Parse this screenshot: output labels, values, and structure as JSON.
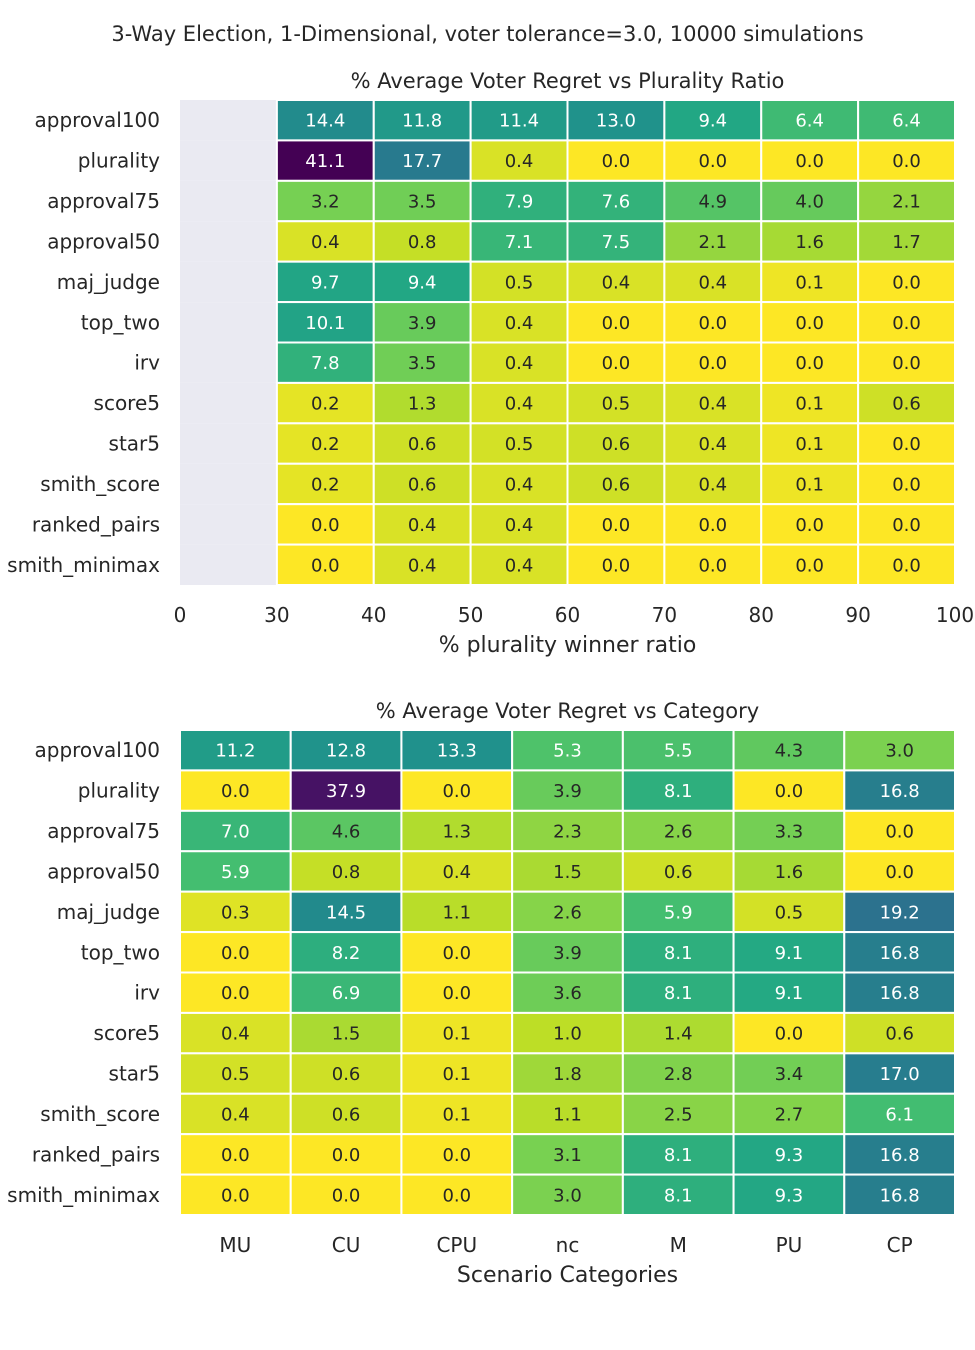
{
  "figure": {
    "suptitle": "3-Way Election, 1-Dimensional, voter tolerance=3.0, 10000 simulations"
  },
  "chart_data": [
    {
      "type": "heatmap",
      "title": "% Average Voter Regret vs Plurality Ratio",
      "xlabel": "% plurality winner ratio",
      "ylabel": "",
      "x_ticks": [
        "0",
        "30",
        "40",
        "50",
        "60",
        "70",
        "80",
        "90",
        "100"
      ],
      "x_bins": [
        "0-30",
        "30-40",
        "40-50",
        "50-60",
        "60-70",
        "70-80",
        "80-90",
        "90-100"
      ],
      "rows": [
        "approval100",
        "plurality",
        "approval75",
        "approval50",
        "maj_judge",
        "top_two",
        "irv",
        "score5",
        "star5",
        "smith_score",
        "ranked_pairs",
        "smith_minimax"
      ],
      "values": [
        [
          null,
          14.4,
          11.8,
          11.4,
          13.0,
          9.4,
          6.4,
          6.4
        ],
        [
          null,
          41.1,
          17.7,
          0.4,
          0.0,
          0.0,
          0.0,
          0.0
        ],
        [
          null,
          3.2,
          3.5,
          7.9,
          7.6,
          4.9,
          4.0,
          2.1
        ],
        [
          null,
          0.4,
          0.8,
          7.1,
          7.5,
          2.1,
          1.6,
          1.7
        ],
        [
          null,
          9.7,
          9.4,
          0.5,
          0.4,
          0.4,
          0.1,
          0.0
        ],
        [
          null,
          10.1,
          3.9,
          0.4,
          0.0,
          0.0,
          0.0,
          0.0
        ],
        [
          null,
          7.8,
          3.5,
          0.4,
          0.0,
          0.0,
          0.0,
          0.0
        ],
        [
          null,
          0.2,
          1.3,
          0.4,
          0.5,
          0.4,
          0.1,
          0.6
        ],
        [
          null,
          0.2,
          0.6,
          0.5,
          0.6,
          0.4,
          0.1,
          0.0
        ],
        [
          null,
          0.2,
          0.6,
          0.4,
          0.6,
          0.4,
          0.1,
          0.0
        ],
        [
          null,
          0.0,
          0.4,
          0.4,
          0.0,
          0.0,
          0.0,
          0.0
        ],
        [
          null,
          0.0,
          0.4,
          0.4,
          0.0,
          0.0,
          0.0,
          0.0
        ]
      ],
      "colormap": "viridis_r",
      "color_range": [
        0,
        41.1
      ],
      "missing_color": "#eaeaf2"
    },
    {
      "type": "heatmap",
      "title": "% Average Voter Regret vs Category",
      "xlabel": "Scenario Categories",
      "ylabel": "",
      "categories": [
        "MU",
        "CU",
        "CPU",
        "nc",
        "M",
        "PU",
        "CP"
      ],
      "rows": [
        "approval100",
        "plurality",
        "approval75",
        "approval50",
        "maj_judge",
        "top_two",
        "irv",
        "score5",
        "star5",
        "smith_score",
        "ranked_pairs",
        "smith_minimax"
      ],
      "values": [
        [
          11.2,
          12.8,
          13.3,
          5.3,
          5.5,
          4.3,
          3.0
        ],
        [
          0.0,
          37.9,
          0.0,
          3.9,
          8.1,
          0.0,
          16.8
        ],
        [
          7.0,
          4.6,
          1.3,
          2.3,
          2.6,
          3.3,
          0.0
        ],
        [
          5.9,
          0.8,
          0.4,
          1.5,
          0.6,
          1.6,
          0.0
        ],
        [
          0.3,
          14.5,
          1.1,
          2.6,
          5.9,
          0.5,
          19.2
        ],
        [
          0.0,
          8.2,
          0.0,
          3.9,
          8.1,
          9.1,
          16.8
        ],
        [
          0.0,
          6.9,
          0.0,
          3.6,
          8.1,
          9.1,
          16.8
        ],
        [
          0.4,
          1.5,
          0.1,
          1.0,
          1.4,
          0.0,
          0.6
        ],
        [
          0.5,
          0.6,
          0.1,
          1.8,
          2.8,
          3.4,
          17.0
        ],
        [
          0.4,
          0.6,
          0.1,
          1.1,
          2.5,
          2.7,
          6.1
        ],
        [
          0.0,
          0.0,
          0.0,
          3.1,
          8.1,
          9.3,
          16.8
        ],
        [
          0.0,
          0.0,
          0.0,
          3.0,
          8.1,
          9.3,
          16.8
        ]
      ],
      "colormap": "viridis_r",
      "color_range": [
        0,
        41.1
      ]
    }
  ]
}
